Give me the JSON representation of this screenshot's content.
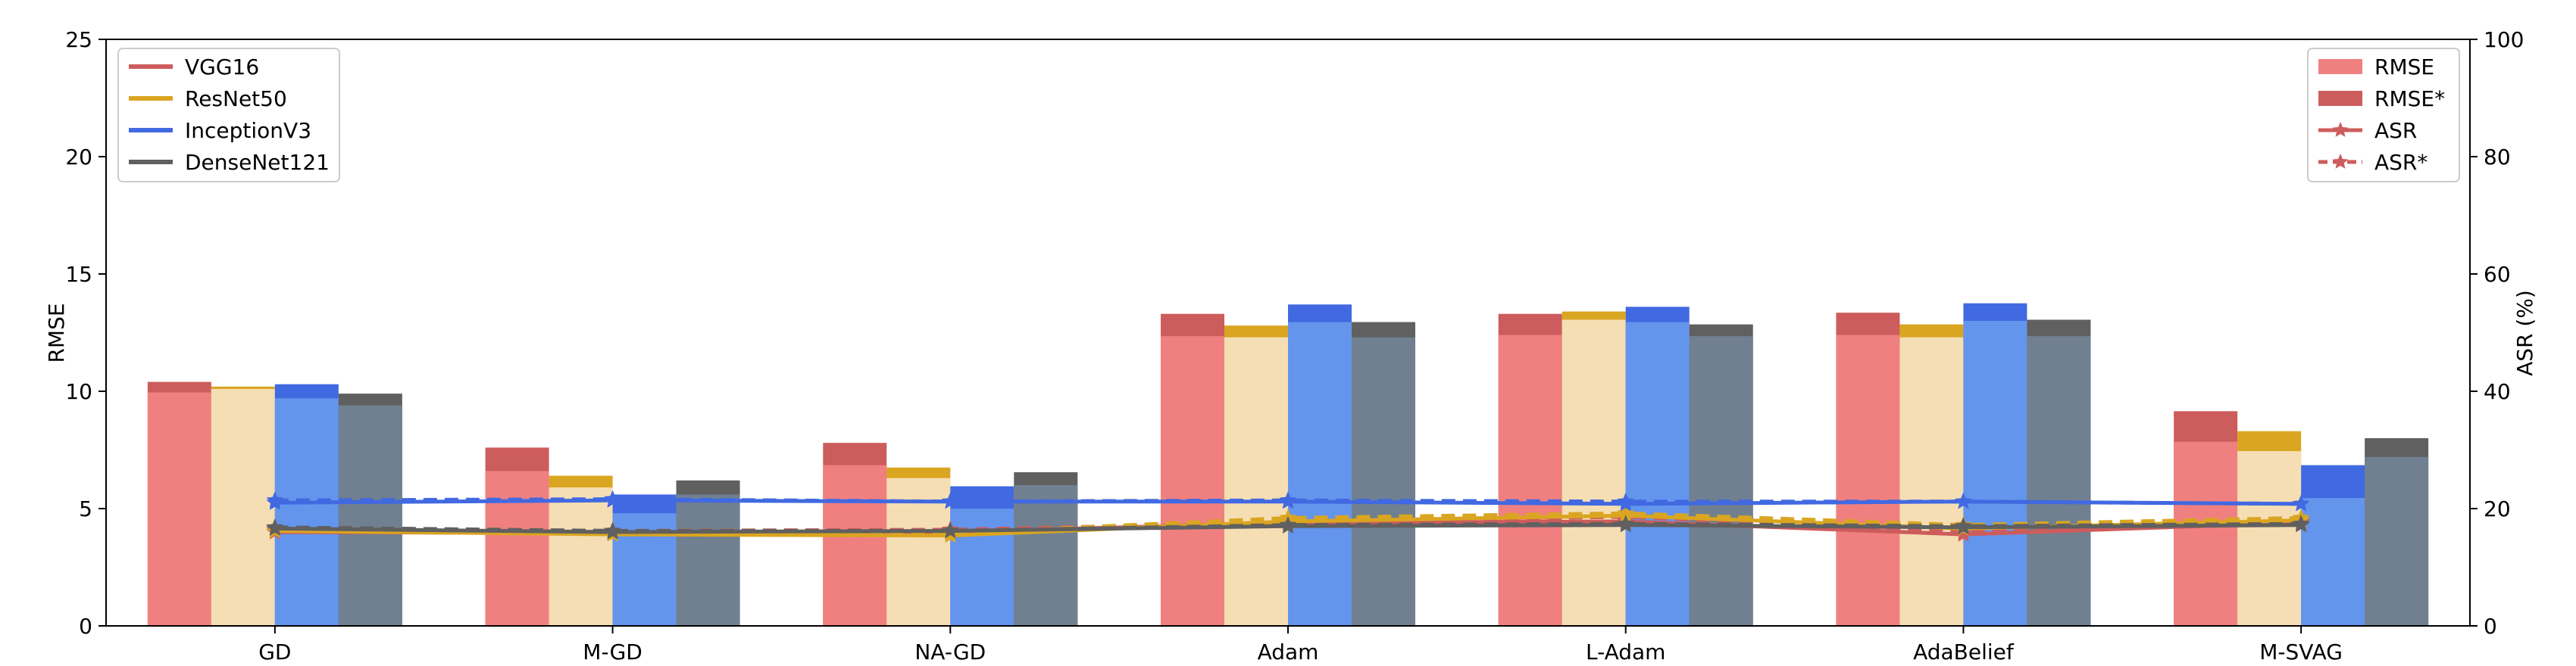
{
  "chart_data": {
    "type": "bar",
    "categories": [
      "GD",
      "M-GD",
      "NA-GD",
      "Adam",
      "L-Adam",
      "AdaBelief",
      "M-SVAG"
    ],
    "ylabel": "RMSE",
    "y2label": "ASR (%)",
    "ylim": [
      0,
      25
    ],
    "y2lim": [
      0,
      100
    ],
    "yticks": [
      "0",
      "5",
      "10",
      "15",
      "20",
      "25"
    ],
    "y2ticks": [
      "0",
      "20",
      "40",
      "60",
      "80",
      "100"
    ],
    "models": [
      {
        "name": "VGG16",
        "color_light": "#f08080",
        "color_dark": "#cd5c5c",
        "rmse": [
          9.95,
          6.6,
          6.85,
          12.35,
          12.4,
          12.4,
          7.85
        ],
        "rmse_star": [
          10.4,
          7.6,
          7.8,
          13.3,
          13.3,
          13.35,
          9.15
        ],
        "asr": [
          16.0,
          15.8,
          16.0,
          17.6,
          17.8,
          15.6,
          17.6
        ],
        "asr_star": [
          16.4,
          16.2,
          16.4,
          17.6,
          18.6,
          16.0,
          17.8
        ]
      },
      {
        "name": "ResNet50",
        "color_light": "#f5deb3",
        "color_dark": "#daa520",
        "rmse": [
          10.1,
          5.9,
          6.3,
          12.3,
          13.05,
          12.3,
          7.45
        ],
        "rmse_star": [
          10.2,
          6.4,
          6.75,
          12.8,
          13.4,
          12.85,
          8.3
        ],
        "asr": [
          16.2,
          15.6,
          15.4,
          17.8,
          18.8,
          16.6,
          18.0
        ],
        "asr_star": [
          16.6,
          15.8,
          15.8,
          18.4,
          19.2,
          17.2,
          18.4
        ]
      },
      {
        "name": "InceptionV3",
        "color_light": "#6495ed",
        "color_dark": "#4169e1",
        "rmse": [
          9.7,
          4.8,
          5.0,
          12.95,
          12.95,
          13.0,
          5.45
        ],
        "rmse_star": [
          10.3,
          5.6,
          5.95,
          13.7,
          13.6,
          13.75,
          6.85
        ],
        "asr": [
          21.0,
          21.4,
          21.2,
          21.2,
          20.8,
          21.2,
          20.8
        ],
        "asr_star": [
          21.4,
          21.6,
          21.2,
          21.4,
          21.2,
          21.2,
          20.8
        ]
      },
      {
        "name": "DenseNet121",
        "color_light": "#708090",
        "color_dark": "#606060",
        "rmse": [
          9.4,
          5.6,
          6.0,
          12.3,
          12.35,
          12.35,
          7.2
        ],
        "rmse_star": [
          9.9,
          6.2,
          6.55,
          12.95,
          12.85,
          13.05,
          8.0
        ],
        "asr": [
          16.6,
          16.0,
          16.2,
          17.0,
          17.2,
          16.8,
          17.2
        ],
        "asr_star": [
          16.8,
          16.2,
          16.2,
          17.2,
          17.4,
          17.0,
          17.4
        ]
      }
    ],
    "legend_models": {
      "placement": "top-left",
      "entries": [
        "VGG16",
        "ResNet50",
        "InceptionV3",
        "DenseNet121"
      ]
    },
    "legend_metrics": {
      "placement": "top-right",
      "entries": [
        "RMSE",
        "RMSE*",
        "ASR",
        "ASR*"
      ]
    },
    "grid": false
  }
}
